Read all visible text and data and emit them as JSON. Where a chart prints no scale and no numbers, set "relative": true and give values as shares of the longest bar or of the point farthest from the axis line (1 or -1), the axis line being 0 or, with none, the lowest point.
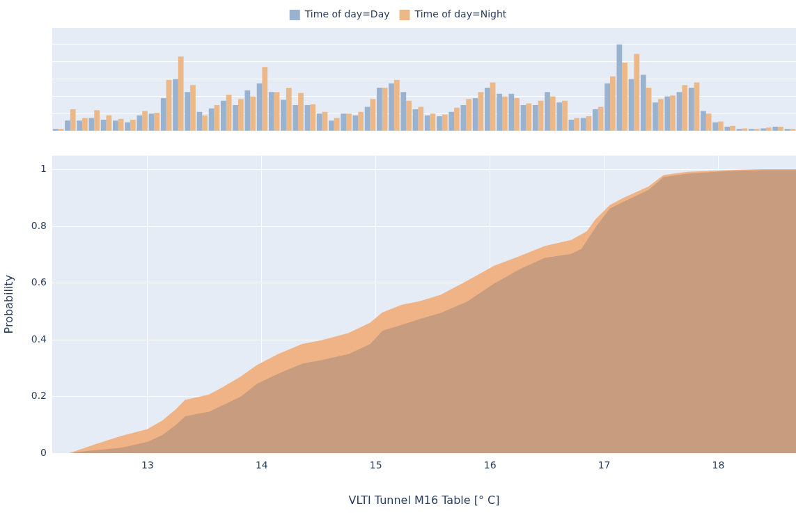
{
  "chart_data": [
    {
      "type": "bar",
      "relative": true,
      "legend": "top",
      "grid": "y",
      "categories": [
        null,
        null,
        null,
        null,
        null,
        null,
        null,
        null,
        null,
        null,
        null,
        null,
        null,
        null,
        null,
        null,
        null,
        null,
        null,
        null,
        null,
        null,
        null,
        null,
        null,
        null,
        null,
        null,
        null,
        null,
        null,
        null,
        null,
        null,
        null,
        null,
        null,
        null,
        null,
        null,
        null,
        null,
        null,
        null,
        null,
        null,
        null,
        null,
        null,
        null,
        null,
        null,
        null,
        null,
        null,
        null,
        null,
        null,
        null,
        null,
        null,
        null
      ],
      "series": [
        {
          "name": "Time of day=Day",
          "color": "#98b2cf",
          "values": [
            0.01,
            0.12,
            0.12,
            0.15,
            0.13,
            0.12,
            0.1,
            0.18,
            0.2,
            0.38,
            0.6,
            0.45,
            0.22,
            0.26,
            0.35,
            0.3,
            0.47,
            0.55,
            0.45,
            0.36,
            0.3,
            0.3,
            0.2,
            0.12,
            0.2,
            0.18,
            0.28,
            0.5,
            0.55,
            0.45,
            0.25,
            0.18,
            0.17,
            0.22,
            0.3,
            0.38,
            0.5,
            0.43,
            0.43,
            0.3,
            0.3,
            0.45,
            0.33,
            0.13,
            0.15,
            0.25,
            0.55,
            1,
            0.6,
            0.65,
            0.33,
            0.4,
            0.45,
            0.5,
            0.23,
            0.1,
            0.05,
            0.02,
            0.02,
            0.03,
            0.05,
            0.02
          ]
        },
        {
          "name": "Time of day=Night",
          "color": "#edb887",
          "values": [
            0.02,
            0.25,
            0.15,
            0.24,
            0.18,
            0.14,
            0.13,
            0.23,
            0.21,
            0.59,
            0.86,
            0.53,
            0.18,
            0.3,
            0.42,
            0.37,
            0.4,
            0.74,
            0.45,
            0.5,
            0.44,
            0.31,
            0.22,
            0.15,
            0.2,
            0.22,
            0.37,
            0.5,
            0.59,
            0.35,
            0.28,
            0.2,
            0.19,
            0.27,
            0.37,
            0.45,
            0.56,
            0.4,
            0.38,
            0.32,
            0.35,
            0.4,
            0.35,
            0.15,
            0.17,
            0.28,
            0.63,
            0.79,
            0.89,
            0.5,
            0.37,
            0.41,
            0.53,
            0.56,
            0.2,
            0.11,
            0.06,
            0.03,
            0.02,
            0.04,
            0.05,
            0.01
          ]
        }
      ]
    },
    {
      "type": "area",
      "xlabel": "VLTI Tunnel M16 Table [° C]",
      "ylabel": "Probability",
      "grid": true,
      "xlim": [
        12.165,
        18.68
      ],
      "xticks": [
        13,
        14,
        15,
        16,
        17,
        18
      ],
      "ylim": [
        0,
        1.05
      ],
      "yticks": [
        {
          "value": 0,
          "label": "0"
        },
        {
          "value": 0.2,
          "label": "0.2"
        },
        {
          "value": 0.4,
          "label": "0.4"
        },
        {
          "value": 0.6,
          "label": "0.6"
        },
        {
          "value": 0.8,
          "label": "0.8"
        },
        {
          "value": 1,
          "label": "1"
        }
      ],
      "series": [
        {
          "color": "#c89c7e",
          "x": [
            12.3,
            12.53,
            12.77,
            13.0,
            13.13,
            13.25,
            13.33,
            13.54,
            13.82,
            13.96,
            14.15,
            14.36,
            14.52,
            14.76,
            14.95,
            15.06,
            15.23,
            15.39,
            15.57,
            15.8,
            16.03,
            16.26,
            16.48,
            16.71,
            16.8,
            16.93,
            17.05,
            17.17,
            17.39,
            17.52,
            17.73,
            18.19,
            18.4,
            18.68
          ],
          "values": [
            0,
            0.01,
            0.019,
            0.04,
            0.064,
            0.1,
            0.13,
            0.146,
            0.2,
            0.245,
            0.281,
            0.316,
            0.328,
            0.349,
            0.385,
            0.432,
            0.453,
            0.474,
            0.495,
            0.535,
            0.597,
            0.649,
            0.689,
            0.703,
            0.72,
            0.8,
            0.863,
            0.887,
            0.929,
            0.974,
            0.986,
            0.998,
            1,
            1
          ]
        },
        {
          "color": "#efb385",
          "x": [
            12.33,
            12.53,
            12.77,
            13.0,
            13.13,
            13.25,
            13.33,
            13.54,
            13.66,
            13.82,
            13.96,
            14.15,
            14.36,
            14.52,
            14.76,
            14.95,
            15.06,
            15.23,
            15.39,
            15.57,
            15.8,
            16.03,
            16.26,
            16.48,
            16.71,
            16.85,
            16.93,
            17.05,
            17.17,
            17.39,
            17.52,
            17.73,
            18.19,
            18.4,
            18.68
          ],
          "values": [
            0,
            0.028,
            0.059,
            0.083,
            0.113,
            0.153,
            0.186,
            0.205,
            0.231,
            0.269,
            0.309,
            0.349,
            0.384,
            0.396,
            0.422,
            0.458,
            0.495,
            0.522,
            0.535,
            0.557,
            0.606,
            0.658,
            0.693,
            0.729,
            0.75,
            0.781,
            0.825,
            0.873,
            0.899,
            0.939,
            0.979,
            0.991,
            0.998,
            1,
            1
          ]
        }
      ]
    }
  ]
}
